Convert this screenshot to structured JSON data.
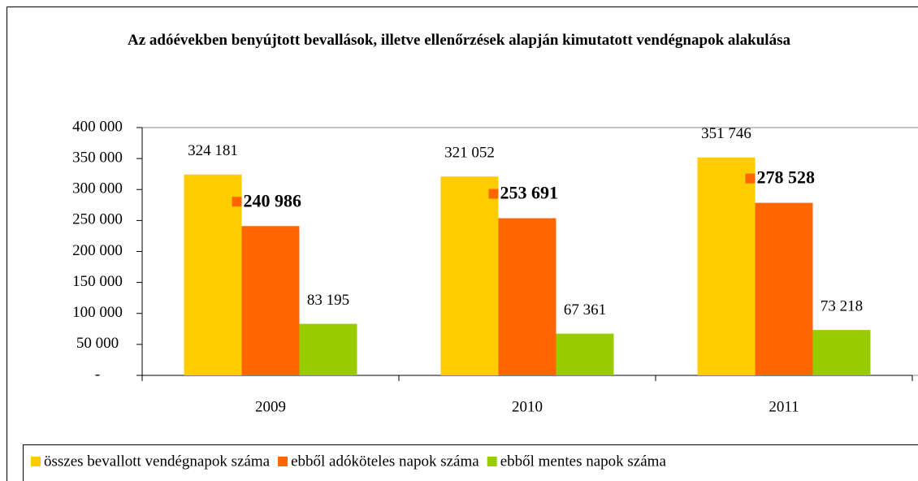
{
  "chart_data": {
    "type": "bar",
    "title": "Az adóévekben benyújtott bevallások, illetve ellenőrzések alapján kimutatott vendégnapok alakulása",
    "categories": [
      "2009",
      "2010",
      "2011"
    ],
    "series": [
      {
        "name": "összes bevallott vendégnapok száma",
        "color": "#ffcc00",
        "values": [
          324181,
          321052,
          351746
        ],
        "value_labels": [
          "324 181",
          "321 052",
          "351 746"
        ]
      },
      {
        "name": "ebből adóköteles napok száma",
        "color": "#ff6600",
        "values": [
          240986,
          253691,
          278528
        ],
        "value_labels": [
          "240 986",
          "253 691",
          "278 528"
        ]
      },
      {
        "name": "ebből mentes napok száma",
        "color": "#99cc00",
        "values": [
          83195,
          67361,
          73218
        ],
        "value_labels": [
          "83 195",
          "67 361",
          "73 218"
        ]
      }
    ],
    "ylim": [
      0,
      400000
    ],
    "yticks": [
      {
        "value": 0,
        "label": "-"
      },
      {
        "value": 50000,
        "label": "50 000"
      },
      {
        "value": 100000,
        "label": "100 000"
      },
      {
        "value": 150000,
        "label": "150 000"
      },
      {
        "value": 200000,
        "label": "200 000"
      },
      {
        "value": 250000,
        "label": "250 000"
      },
      {
        "value": 300000,
        "label": "300 000"
      },
      {
        "value": 350000,
        "label": "350 000"
      },
      {
        "value": 400000,
        "label": "400 000"
      }
    ],
    "grid": false,
    "legend": "bottom"
  }
}
